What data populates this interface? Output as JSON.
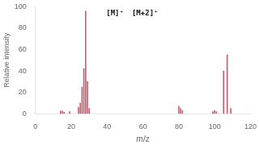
{
  "chart_data": {
    "type": "bar",
    "xlabel": "m/z",
    "ylabel": "Relative intensity",
    "x": [
      14,
      15,
      16,
      19,
      24,
      25,
      26,
      27,
      28,
      29,
      30,
      80,
      81,
      82,
      99,
      100,
      101,
      105,
      107,
      109
    ],
    "values": [
      2.5,
      2.5,
      1.5,
      2,
      6,
      10,
      25,
      42,
      96,
      30,
      5,
      7,
      5,
      3,
      2,
      3,
      2,
      40,
      55,
      5
    ],
    "color": "#c96070",
    "xlim": [
      0.0,
      120
    ],
    "xticks": [
      0.0,
      20,
      40,
      60,
      80,
      100,
      120
    ],
    "ylim": [
      0.0,
      100
    ],
    "yticks": [
      0,
      20,
      40,
      60,
      80,
      100
    ],
    "grid": false,
    "annotations": [
      "[M]⁺",
      "[M+2]⁺"
    ]
  }
}
